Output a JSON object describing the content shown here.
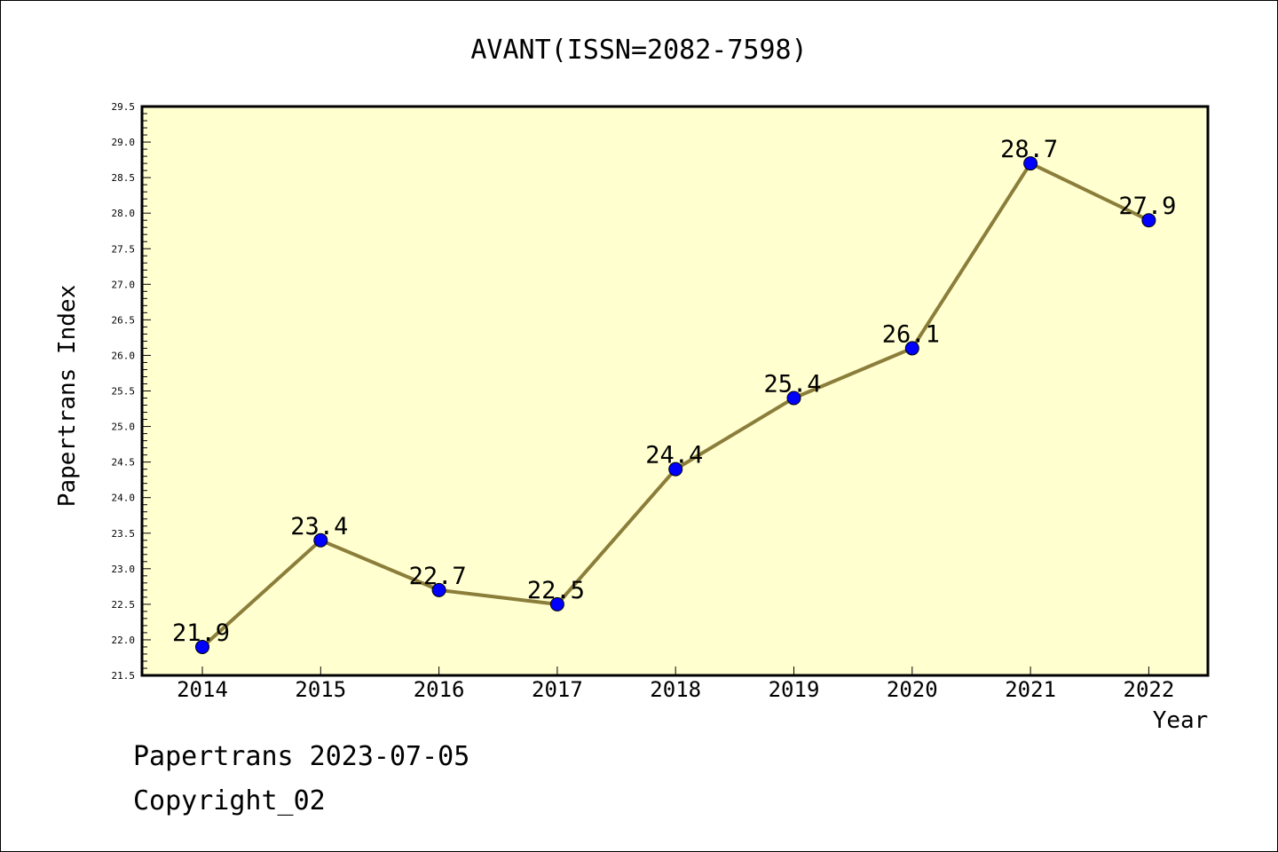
{
  "chart_data": {
    "type": "line",
    "title": "AVANT(ISSN=2082-7598)",
    "xlabel": "Year",
    "ylabel": "Papertrans Index",
    "categories": [
      "2014",
      "2015",
      "2016",
      "2017",
      "2018",
      "2019",
      "2020",
      "2021",
      "2022"
    ],
    "values": [
      21.9,
      23.4,
      22.7,
      22.5,
      24.4,
      25.4,
      26.1,
      28.7,
      27.9
    ],
    "data_labels": [
      "21.9",
      "23.4",
      "22.7",
      "22.5",
      "24.4",
      "25.4",
      "26.1",
      "28.7",
      "27.9"
    ],
    "ylim": [
      21.5,
      29.5
    ],
    "yticks": [
      "21.5",
      "22.0",
      "22.5",
      "23.0",
      "23.5",
      "24.0",
      "24.5",
      "25.0",
      "25.5",
      "26.0",
      "26.5",
      "27.0",
      "27.5",
      "28.0",
      "28.5",
      "29.0",
      "29.5"
    ],
    "grid": false,
    "legend": "none",
    "colors": {
      "plot_background": "#ffffd0",
      "line": "#8b7d3a",
      "marker": "#0000ff",
      "axis": "#000000"
    }
  },
  "footer": {
    "line1": "Papertrans 2023-07-05",
    "line2": "Copyright_02"
  }
}
